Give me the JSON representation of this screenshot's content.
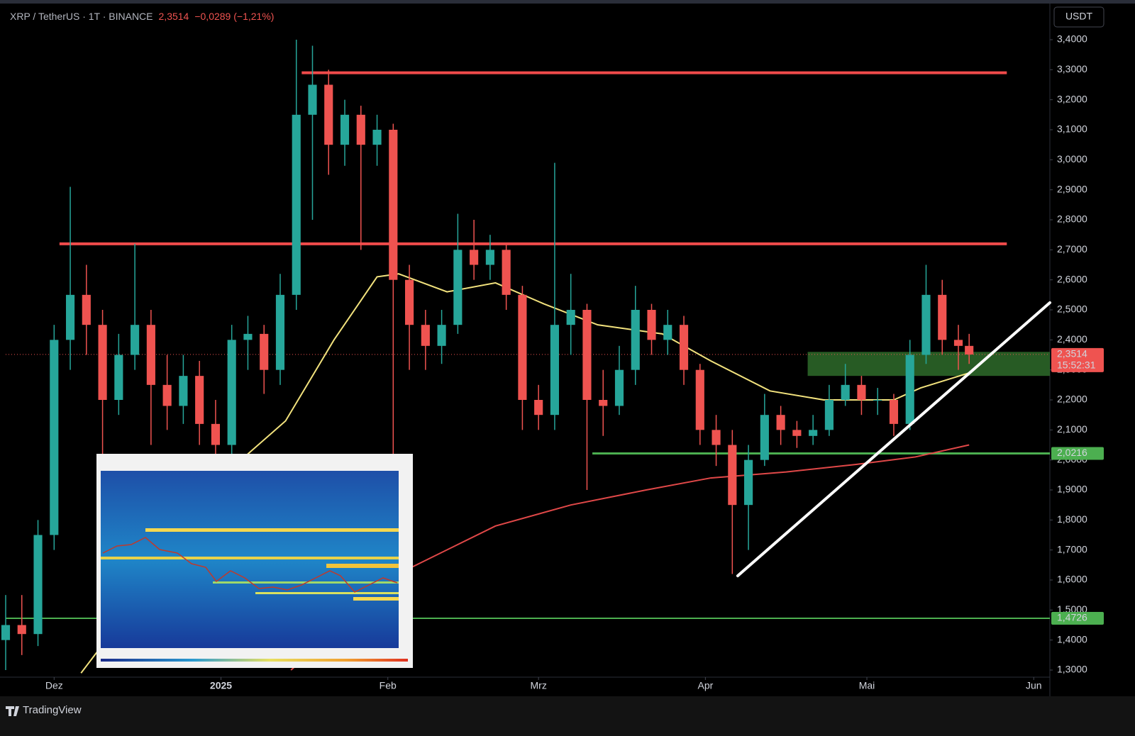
{
  "header": {
    "symbol": "XRP / TetherUS · 1T · BINANCE",
    "price": "2,3514",
    "change": "−0,0289 (−1,21%)"
  },
  "currency": "USDT",
  "brand": "TradingView",
  "chart_data": {
    "type": "candlestick",
    "x": [
      "2024-11-22",
      "2024-11-25",
      "2024-11-28",
      "2024-12-01",
      "2024-12-04",
      "2024-12-07",
      "2024-12-10",
      "2024-12-13",
      "2024-12-16",
      "2024-12-19",
      "2024-12-22",
      "2024-12-25",
      "2024-12-28",
      "2024-12-31",
      "2025-01-03",
      "2025-01-06",
      "2025-01-09",
      "2025-01-12",
      "2025-01-15",
      "2025-01-18",
      "2025-01-21",
      "2025-01-24",
      "2025-01-27",
      "2025-01-30",
      "2025-02-02",
      "2025-02-05",
      "2025-02-08",
      "2025-02-11",
      "2025-02-14",
      "2025-02-17",
      "2025-02-20",
      "2025-02-23",
      "2025-02-26",
      "2025-03-01",
      "2025-03-04",
      "2025-03-07",
      "2025-03-10",
      "2025-03-13",
      "2025-03-16",
      "2025-03-19",
      "2025-03-22",
      "2025-03-25",
      "2025-03-28",
      "2025-03-31",
      "2025-04-03",
      "2025-04-06",
      "2025-04-09",
      "2025-04-12",
      "2025-04-15",
      "2025-04-18",
      "2025-04-21",
      "2025-04-24",
      "2025-04-27",
      "2025-04-30",
      "2025-05-03",
      "2025-05-06",
      "2025-05-09",
      "2025-05-12",
      "2025-05-15",
      "2025-05-18",
      "2025-05-20"
    ],
    "open": [
      1.4,
      1.45,
      1.42,
      1.75,
      2.4,
      2.55,
      2.45,
      2.2,
      2.35,
      2.45,
      2.25,
      2.18,
      2.28,
      2.12,
      2.05,
      2.4,
      2.42,
      2.3,
      2.55,
      3.15,
      3.25,
      3.05,
      3.15,
      3.05,
      3.1,
      2.6,
      2.45,
      2.38,
      2.45,
      2.7,
      2.65,
      2.7,
      2.55,
      2.2,
      2.15,
      2.45,
      2.5,
      2.2,
      2.18,
      2.3,
      2.5,
      2.4,
      2.45,
      2.3,
      2.1,
      2.05,
      1.85,
      2.0,
      2.15,
      2.1,
      2.08,
      2.1,
      2.2,
      2.25,
      2.2,
      2.2,
      2.12,
      2.35,
      2.55,
      2.4,
      2.38
    ],
    "high": [
      1.55,
      1.55,
      1.8,
      2.45,
      2.91,
      2.65,
      2.5,
      2.42,
      2.72,
      2.5,
      2.35,
      2.35,
      2.33,
      2.2,
      2.45,
      2.48,
      2.45,
      2.62,
      3.4,
      3.38,
      3.3,
      3.2,
      3.18,
      3.15,
      3.12,
      2.65,
      2.5,
      2.5,
      2.82,
      2.8,
      2.75,
      2.72,
      2.58,
      2.25,
      2.99,
      2.62,
      2.52,
      2.3,
      2.38,
      2.58,
      2.52,
      2.5,
      2.48,
      2.32,
      2.15,
      2.1,
      2.05,
      2.22,
      2.18,
      2.13,
      2.15,
      2.25,
      2.32,
      2.28,
      2.24,
      2.22,
      2.4,
      2.65,
      2.6,
      2.45,
      2.42
    ],
    "low": [
      1.3,
      1.35,
      1.38,
      1.7,
      2.3,
      2.35,
      1.95,
      2.15,
      2.3,
      2.05,
      2.1,
      2.12,
      2.05,
      2.0,
      2.02,
      2.3,
      2.22,
      2.25,
      2.5,
      2.8,
      2.95,
      2.98,
      2.7,
      2.98,
      2.0,
      2.3,
      2.3,
      2.32,
      2.42,
      2.6,
      2.6,
      2.5,
      2.1,
      2.1,
      2.1,
      2.35,
      1.9,
      2.08,
      2.15,
      2.25,
      2.35,
      2.35,
      2.25,
      2.05,
      1.98,
      1.62,
      1.7,
      1.98,
      2.05,
      2.04,
      2.05,
      2.08,
      2.18,
      2.15,
      2.15,
      2.08,
      2.1,
      2.32,
      2.35,
      2.3,
      2.32
    ],
    "close": [
      1.45,
      1.42,
      1.75,
      2.4,
      2.55,
      2.45,
      2.2,
      2.35,
      2.45,
      2.25,
      2.18,
      2.28,
      2.12,
      2.05,
      2.4,
      2.42,
      2.3,
      2.55,
      3.15,
      3.25,
      3.05,
      3.15,
      3.05,
      3.1,
      2.6,
      2.45,
      2.38,
      2.45,
      2.7,
      2.65,
      2.7,
      2.55,
      2.2,
      2.15,
      2.45,
      2.5,
      2.2,
      2.18,
      2.3,
      2.5,
      2.4,
      2.45,
      2.3,
      2.1,
      2.05,
      1.85,
      2.0,
      2.15,
      2.1,
      2.08,
      2.1,
      2.2,
      2.25,
      2.2,
      2.2,
      2.12,
      2.35,
      2.55,
      2.4,
      2.38,
      2.3514
    ],
    "up_color": "#26a69a",
    "down_color": "#ef5350",
    "series": [
      {
        "color": "#f2e27d",
        "x": [
          "2024-12-06",
          "2025-01-06",
          "2025-01-13",
          "2025-01-22",
          "2025-01-30",
          "2025-02-03",
          "2025-02-12",
          "2025-02-21",
          "2025-03-02",
          "2025-03-12",
          "2025-03-24",
          "2025-04-02",
          "2025-04-13",
          "2025-04-23",
          "2025-05-06",
          "2025-05-11",
          "2025-05-20"
        ],
        "values": [
          1.29,
          2.02,
          2.13,
          2.4,
          2.61,
          2.62,
          2.56,
          2.59,
          2.52,
          2.45,
          2.42,
          2.33,
          2.23,
          2.2,
          2.2,
          2.24,
          2.29
        ]
      },
      {
        "color": "#e04848",
        "x": [
          "2025-01-14",
          "2025-02-04",
          "2025-02-21",
          "2025-03-07",
          "2025-03-21",
          "2025-04-02",
          "2025-04-16",
          "2025-04-29",
          "2025-05-10",
          "2025-05-20"
        ],
        "values": [
          1.3,
          1.63,
          1.78,
          1.85,
          1.9,
          1.94,
          1.96,
          1.985,
          2.01,
          2.05
        ]
      }
    ],
    "levels": [
      {
        "value": 3.29,
        "from": "2025-01-16",
        "to": "2025-05-27",
        "color": "#f04b4b"
      },
      {
        "value": 2.72,
        "from": "2024-12-02",
        "to": "2025-05-27",
        "color": "#f04b4b"
      }
    ],
    "zone": {
      "from": "2025-04-20",
      "low": 2.28,
      "high": 2.36,
      "color": "#2e6b2a"
    },
    "trendline": {
      "x": [
        "2025-04-07",
        "2025-06-04"
      ],
      "values": [
        1.614,
        2.524
      ],
      "color": "#ffffff"
    },
    "price_labels": [
      {
        "value": 2.3514,
        "label": "2,3514",
        "countdown": "15:52:31",
        "color": "#ef5350"
      },
      {
        "value": 2.0216,
        "label": "2,0216",
        "from": "2025-03-11",
        "color": "#4caf50"
      },
      {
        "value": 1.4726,
        "label": "1,4726",
        "from": "2024-11-22",
        "color": "#4caf50"
      }
    ],
    "xlim": [
      "2024-11-22",
      "2025-06-04"
    ],
    "ylim": [
      1.2764,
      3.5323
    ],
    "xticks": [
      {
        "value": "2024-12-01",
        "label": "Dez"
      },
      {
        "value": "2025-01-01",
        "label": "2025"
      },
      {
        "value": "2025-02-01",
        "label": "Feb"
      },
      {
        "value": "2025-03-01",
        "label": "Mrz"
      },
      {
        "value": "2025-04-01",
        "label": "Apr"
      },
      {
        "value": "2025-05-01",
        "label": "Mai"
      },
      {
        "value": "2025-06-01",
        "label": "Jun"
      }
    ],
    "yticks": [
      {
        "value": 1.3,
        "label": "1,3000"
      },
      {
        "value": 1.4,
        "label": "1,4000"
      },
      {
        "value": 1.5,
        "label": "1,5000"
      },
      {
        "value": 1.6,
        "label": "1,6000"
      },
      {
        "value": 1.7,
        "label": "1,7000"
      },
      {
        "value": 1.8,
        "label": "1,8000"
      },
      {
        "value": 1.9,
        "label": "1,9000"
      },
      {
        "value": 2.0,
        "label": "2,0000"
      },
      {
        "value": 2.1,
        "label": "2,1000"
      },
      {
        "value": 2.2,
        "label": "2,2000"
      },
      {
        "value": 2.3,
        "label": "2,3000"
      },
      {
        "value": 2.4,
        "label": "2,4000"
      },
      {
        "value": 2.5,
        "label": "2,5000"
      },
      {
        "value": 2.6,
        "label": "2,6000"
      },
      {
        "value": 2.7,
        "label": "2,7000"
      },
      {
        "value": 2.8,
        "label": "2,8000"
      },
      {
        "value": 2.9,
        "label": "2,9000"
      },
      {
        "value": 3.0,
        "label": "3,0000"
      },
      {
        "value": 3.1,
        "label": "3,1000"
      },
      {
        "value": 3.2,
        "label": "3,2000"
      },
      {
        "value": 3.3,
        "label": "3,3000"
      },
      {
        "value": 3.4,
        "label": "3,4000"
      }
    ]
  }
}
